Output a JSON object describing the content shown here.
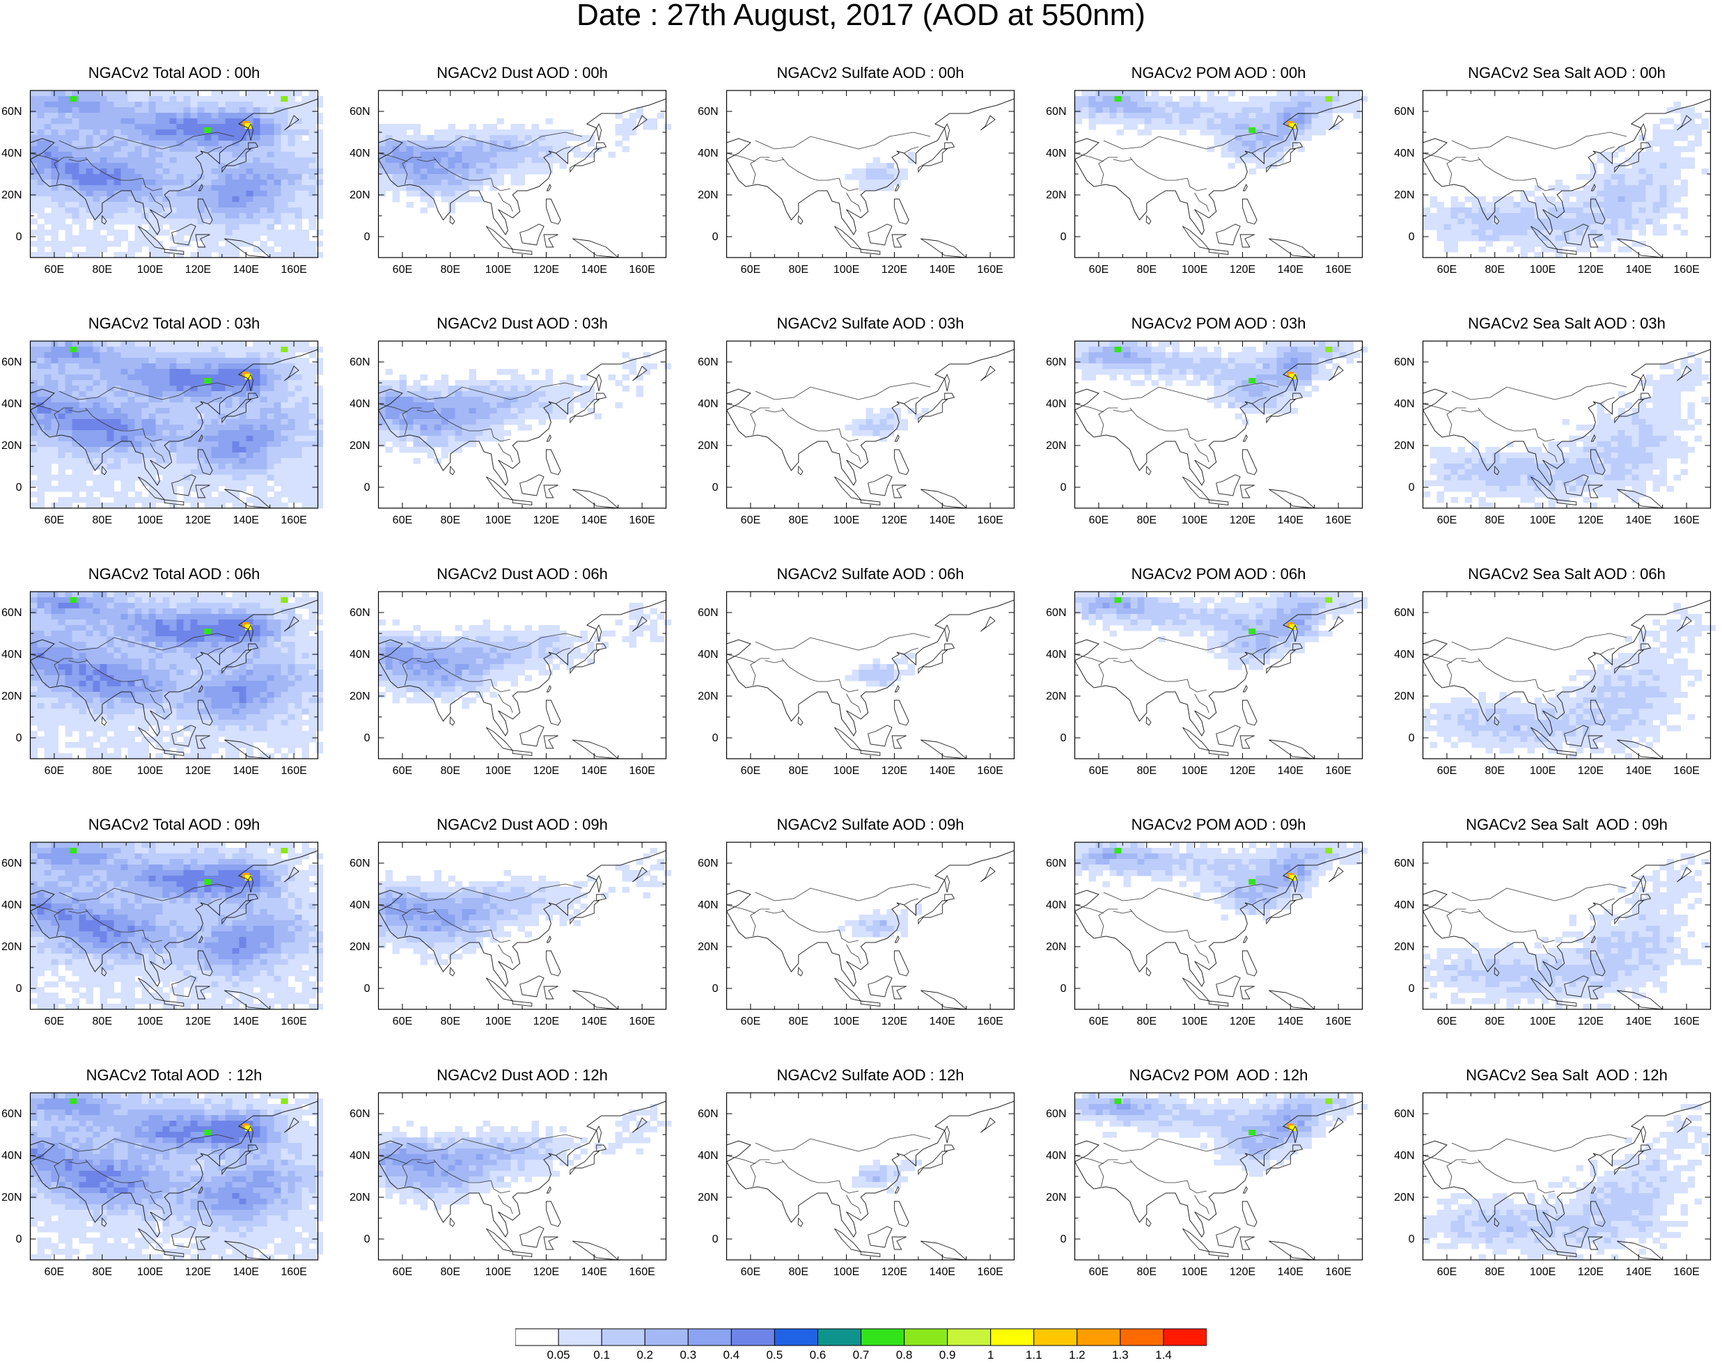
{
  "title": "Date : 27th August, 2017 (AOD at 550nm)",
  "lon_ticks": [
    "60E",
    "80E",
    "100E",
    "120E",
    "140E",
    "160E"
  ],
  "lat_ticks": [
    "60N",
    "40N",
    "20N",
    "0"
  ],
  "rows": [
    {
      "hour": "00h",
      "titles": [
        "NGACv2 Total AOD : 00h",
        "NGACv2 Dust AOD : 00h",
        "NGACv2 Sulfate AOD : 00h",
        "NGACv2 POM AOD : 00h",
        "NGACv2 Sea Salt AOD : 00h"
      ]
    },
    {
      "hour": "03h",
      "titles": [
        "NGACv2 Total AOD : 03h",
        "NGACv2 Dust AOD : 03h",
        "NGACv2 Sulfate AOD : 03h",
        "NGACv2 POM AOD : 03h",
        "NGACv2 Sea Salt AOD : 03h"
      ]
    },
    {
      "hour": "06h",
      "titles": [
        "NGACv2 Total AOD : 06h",
        "NGACv2 Dust AOD : 06h",
        "NGACv2 Sulfate AOD : 06h",
        "NGACv2 POM AOD : 06h",
        "NGACv2 Sea Salt AOD : 06h"
      ]
    },
    {
      "hour": "09h",
      "titles": [
        "NGACv2 Total AOD : 09h",
        "NGACv2 Dust AOD : 09h",
        "NGACv2 Sulfate AOD : 09h",
        "NGACv2 POM AOD : 09h",
        "NGACv2 Sea Salt  AOD : 09h"
      ]
    },
    {
      "hour": "12h",
      "titles": [
        "NGACv2 Total AOD  : 12h",
        "NGACv2 Dust AOD : 12h",
        "NGACv2 Sulfate AOD : 12h",
        "NGACv2 POM  AOD : 12h",
        "NGACv2 Sea Salt  AOD : 12h"
      ]
    }
  ],
  "columns": [
    "Total",
    "Dust",
    "Sulfate",
    "POM",
    "Sea Salt"
  ],
  "colorbar": {
    "labels": [
      "0.05",
      "0.1",
      "0.2",
      "0.3",
      "0.4",
      "0.5",
      "0.6",
      "0.7",
      "0.8",
      "0.9",
      "1",
      "1.1",
      "1.2",
      "1.3",
      "1.4"
    ],
    "colors": [
      "#ffffff",
      "#d6e0ff",
      "#bccdfb",
      "#a4b8f6",
      "#8ba3f0",
      "#6f84e8",
      "#1f62e6",
      "#0e948c",
      "#33e31a",
      "#8be81b",
      "#c8f53a",
      "#ffff00",
      "#ffc800",
      "#ff9d00",
      "#ff6a00",
      "#ff1a00"
    ]
  }
}
